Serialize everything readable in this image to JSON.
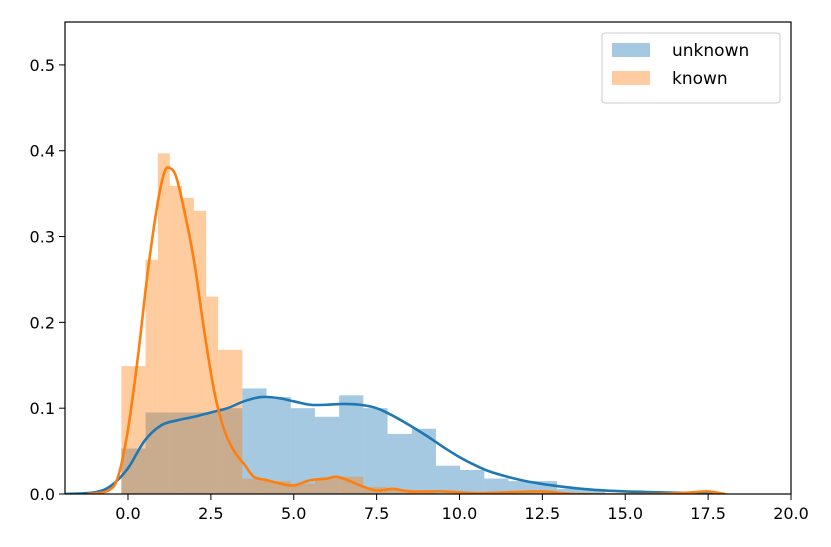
{
  "chart_data": {
    "type": "histogram",
    "title": "",
    "xlabel": "",
    "ylabel": "",
    "xlim": [
      -1.9,
      20.0
    ],
    "ylim": [
      0,
      0.55
    ],
    "grid": false,
    "legend_position": "top-right",
    "x_ticks": [
      {
        "value": 0,
        "label": "0.0"
      },
      {
        "value": 2.5,
        "label": "2.5"
      },
      {
        "value": 5,
        "label": "5.0"
      },
      {
        "value": 7.5,
        "label": "7.5"
      },
      {
        "value": 10,
        "label": "10.0"
      },
      {
        "value": 12.5,
        "label": "12.5"
      },
      {
        "value": 15,
        "label": "15.0"
      },
      {
        "value": 17.5,
        "label": "17.5"
      },
      {
        "value": 20,
        "label": "20.0"
      }
    ],
    "y_ticks": [
      {
        "value": 0,
        "label": "0.0"
      },
      {
        "value": 0.1,
        "label": "0.1"
      },
      {
        "value": 0.2,
        "label": "0.2"
      },
      {
        "value": 0.3,
        "label": "0.3"
      },
      {
        "value": 0.4,
        "label": "0.4"
      },
      {
        "value": 0.5,
        "label": "0.5"
      }
    ],
    "series": [
      {
        "name": "unknown",
        "color": "#1f77b4",
        "bins": [
          {
            "x0": -0.2,
            "x1": 0.53,
            "y": 0.053
          },
          {
            "x0": 0.53,
            "x1": 1.26,
            "y": 0.095
          },
          {
            "x0": 1.26,
            "x1": 1.99,
            "y": 0.095
          },
          {
            "x0": 1.99,
            "x1": 2.72,
            "y": 0.095
          },
          {
            "x0": 2.72,
            "x1": 3.45,
            "y": 0.1
          },
          {
            "x0": 3.45,
            "x1": 4.18,
            "y": 0.123
          },
          {
            "x0": 4.18,
            "x1": 4.91,
            "y": 0.113
          },
          {
            "x0": 4.91,
            "x1": 5.64,
            "y": 0.1
          },
          {
            "x0": 5.64,
            "x1": 6.37,
            "y": 0.09
          },
          {
            "x0": 6.37,
            "x1": 7.1,
            "y": 0.115
          },
          {
            "x0": 7.1,
            "x1": 7.83,
            "y": 0.1
          },
          {
            "x0": 7.83,
            "x1": 8.56,
            "y": 0.07
          },
          {
            "x0": 8.56,
            "x1": 9.29,
            "y": 0.076
          },
          {
            "x0": 9.29,
            "x1": 10.02,
            "y": 0.033
          },
          {
            "x0": 10.02,
            "x1": 10.75,
            "y": 0.028
          },
          {
            "x0": 10.75,
            "x1": 11.48,
            "y": 0.018
          },
          {
            "x0": 11.48,
            "x1": 12.21,
            "y": 0.015
          },
          {
            "x0": 12.21,
            "x1": 12.94,
            "y": 0.015
          },
          {
            "x0": 12.94,
            "x1": 13.67,
            "y": 0.006
          },
          {
            "x0": 13.67,
            "x1": 14.4,
            "y": 0.005
          }
        ],
        "kde": [
          [
            -1.9,
            0.0
          ],
          [
            -1.0,
            0.002
          ],
          [
            -0.5,
            0.01
          ],
          [
            0.0,
            0.03
          ],
          [
            0.5,
            0.062
          ],
          [
            1.0,
            0.08
          ],
          [
            1.5,
            0.086
          ],
          [
            2.0,
            0.09
          ],
          [
            2.5,
            0.095
          ],
          [
            3.0,
            0.1
          ],
          [
            3.5,
            0.108
          ],
          [
            4.0,
            0.113
          ],
          [
            4.5,
            0.112
          ],
          [
            5.0,
            0.108
          ],
          [
            5.5,
            0.104
          ],
          [
            6.0,
            0.104
          ],
          [
            6.5,
            0.105
          ],
          [
            7.0,
            0.104
          ],
          [
            7.5,
            0.1
          ],
          [
            8.0,
            0.091
          ],
          [
            8.5,
            0.08
          ],
          [
            9.0,
            0.068
          ],
          [
            9.5,
            0.055
          ],
          [
            10.0,
            0.043
          ],
          [
            10.5,
            0.033
          ],
          [
            11.0,
            0.025
          ],
          [
            12.0,
            0.015
          ],
          [
            13.0,
            0.009
          ],
          [
            14.0,
            0.005
          ],
          [
            15.0,
            0.003
          ],
          [
            16.0,
            0.002
          ],
          [
            17.0,
            0.001
          ],
          [
            18.0,
            0.0
          ]
        ]
      },
      {
        "name": "known",
        "color": "#ff7f0e",
        "bins": [
          {
            "x0": -0.2,
            "x1": 0.53,
            "y": 0.149
          },
          {
            "x0": 0.53,
            "x1": 0.9,
            "y": 0.273
          },
          {
            "x0": 0.9,
            "x1": 1.26,
            "y": 0.397
          },
          {
            "x0": 1.26,
            "x1": 1.63,
            "y": 0.359
          },
          {
            "x0": 1.63,
            "x1": 1.99,
            "y": 0.345
          },
          {
            "x0": 1.99,
            "x1": 2.36,
            "y": 0.33
          },
          {
            "x0": 2.36,
            "x1": 2.72,
            "y": 0.23
          },
          {
            "x0": 2.72,
            "x1": 3.45,
            "y": 0.168
          },
          {
            "x0": 3.45,
            "x1": 4.18,
            "y": 0.018
          },
          {
            "x0": 4.18,
            "x1": 4.91,
            "y": 0.015
          },
          {
            "x0": 4.91,
            "x1": 5.64,
            "y": 0.012
          },
          {
            "x0": 5.64,
            "x1": 6.37,
            "y": 0.018
          },
          {
            "x0": 6.37,
            "x1": 7.1,
            "y": 0.02
          },
          {
            "x0": 7.1,
            "x1": 7.83,
            "y": 0.008
          },
          {
            "x0": 7.83,
            "x1": 8.56,
            "y": 0.005
          },
          {
            "x0": 8.56,
            "x1": 9.29,
            "y": 0.004
          },
          {
            "x0": 11.48,
            "x1": 12.21,
            "y": 0.004
          },
          {
            "x0": 12.21,
            "x1": 12.94,
            "y": 0.004
          },
          {
            "x0": 16.5,
            "x1": 17.5,
            "y": 0.003
          }
        ],
        "kde": [
          [
            -1.2,
            0.0
          ],
          [
            -0.6,
            0.004
          ],
          [
            -0.3,
            0.02
          ],
          [
            0.0,
            0.075
          ],
          [
            0.3,
            0.16
          ],
          [
            0.6,
            0.26
          ],
          [
            0.9,
            0.34
          ],
          [
            1.1,
            0.375
          ],
          [
            1.25,
            0.38
          ],
          [
            1.45,
            0.37
          ],
          [
            1.7,
            0.33
          ],
          [
            2.0,
            0.27
          ],
          [
            2.3,
            0.19
          ],
          [
            2.6,
            0.12
          ],
          [
            2.9,
            0.075
          ],
          [
            3.2,
            0.05
          ],
          [
            3.5,
            0.035
          ],
          [
            3.8,
            0.02
          ],
          [
            4.2,
            0.016
          ],
          [
            4.6,
            0.012
          ],
          [
            5.0,
            0.01
          ],
          [
            5.5,
            0.016
          ],
          [
            6.0,
            0.018
          ],
          [
            6.3,
            0.02
          ],
          [
            6.7,
            0.015
          ],
          [
            7.0,
            0.01
          ],
          [
            7.5,
            0.004
          ],
          [
            8.0,
            0.006
          ],
          [
            8.5,
            0.003
          ],
          [
            9.5,
            0.003
          ],
          [
            10.5,
            0.001
          ],
          [
            11.5,
            0.002
          ],
          [
            12.5,
            0.003
          ],
          [
            13.5,
            0.0
          ],
          [
            16.0,
            0.0
          ],
          [
            17.0,
            0.002
          ],
          [
            17.5,
            0.003
          ],
          [
            18.0,
            0.0
          ]
        ]
      }
    ]
  }
}
